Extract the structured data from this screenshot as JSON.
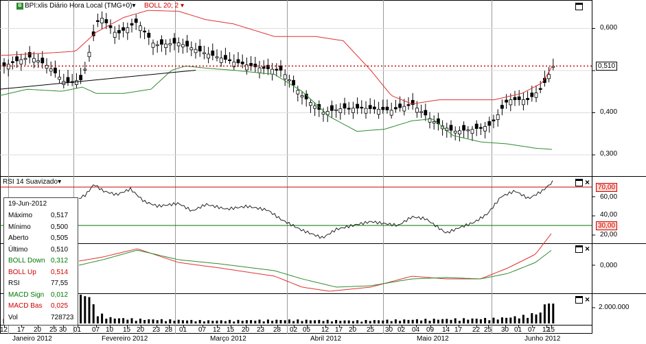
{
  "instrument": {
    "title": "BPI:xlis Diário Hora Local (TMG+0)",
    "indicator": "BOLL 20; 2",
    "icon": "bpi-instrument-icon",
    "title_color": "#000000",
    "indicator_color": "#cc0000"
  },
  "price_axis": {
    "ticks": [
      "0,600",
      "0,400",
      "0,300"
    ],
    "current_price": "0,510",
    "current_level": 0.51
  },
  "rsi": {
    "title": "RSI 14 Suavizado",
    "ticks": [
      "60,00",
      "40,00",
      "20,00"
    ],
    "upper_label": "70,00",
    "lower_label": "30,00",
    "upper_level": 70,
    "lower_level": 30
  },
  "macd": {
    "ticks": [
      "0,000"
    ]
  },
  "volume": {
    "ticks": [
      "2.000.000"
    ]
  },
  "info_box": {
    "date": "19-Jun-2012",
    "rows": [
      {
        "label": "Máximo",
        "value": "0,517"
      },
      {
        "label": "Mínimo",
        "value": "0,500"
      },
      {
        "label": "Aberto",
        "value": "0,505"
      },
      {
        "label": "Último",
        "value": "0,510"
      },
      {
        "label": "BOLL Down",
        "value": "0,312",
        "color": "#007700"
      },
      {
        "label": "BOLL Up",
        "value": "0,514",
        "color": "#cc0000"
      },
      {
        "label": "RSI",
        "value": "77,55"
      },
      {
        "label": "MACD Sign",
        "value": "0,012",
        "color": "#007700"
      },
      {
        "label": "MACD Bas",
        "value": "0,025",
        "color": "#cc0000"
      },
      {
        "label": "Vol",
        "value": "728723"
      }
    ]
  },
  "time_axis": {
    "day_labels": [
      "12",
      "17",
      "20",
      "25",
      "30",
      "01",
      "07",
      "10",
      "15",
      "20",
      "23",
      "28",
      "01",
      "07",
      "12",
      "15",
      "20",
      "23",
      "28",
      "02",
      "05",
      "12",
      "17",
      "20",
      "25",
      "30",
      "02",
      "04",
      "09",
      "14",
      "17",
      "22",
      "25",
      "30",
      "01",
      "07",
      "12",
      "15"
    ],
    "month_labels": [
      "Janeiro 2012",
      "Fevereiro 2012",
      "Março 2012",
      "Abril 2012",
      "Maio 2012",
      "Junho 2012"
    ]
  },
  "colors": {
    "boll_up": "#e03030",
    "boll_down": "#2e8b2e",
    "rsi_line": "#222222",
    "macd_base": "#e03030",
    "macd_signal": "#2e8b2e",
    "dotted_price": "#cc0000",
    "label_bg_red": "#ffd8d0"
  }
}
